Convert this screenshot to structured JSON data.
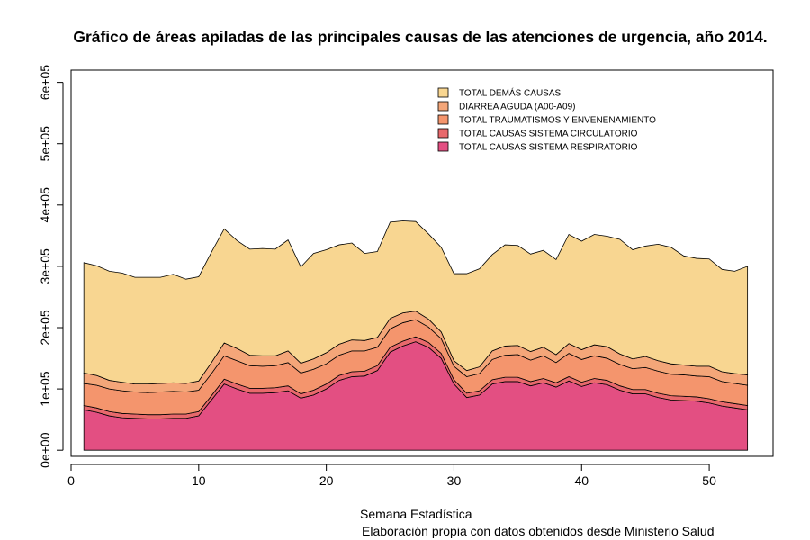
{
  "chart_data": {
    "type": "area",
    "stacked": true,
    "title": "Gráfico de áreas apiladas de las principales causas de las atenciones de urgencia, año 2014.",
    "xlabel": "Semana Estadística",
    "caption": "Elaboración propia con datos obtenidos desde Ministerio Salud",
    "ylabel": "",
    "xlim": [
      0,
      55
    ],
    "ylim": [
      -10000,
      620000
    ],
    "x_ticks": [
      0,
      10,
      20,
      30,
      40,
      50
    ],
    "x_tick_labels": [
      "0",
      "10",
      "20",
      "30",
      "40",
      "50"
    ],
    "y_ticks": [
      0,
      100000,
      200000,
      300000,
      400000,
      500000,
      600000
    ],
    "y_tick_labels": [
      "0e+00",
      "1e+05",
      "2e+05",
      "3e+05",
      "4e+05",
      "5e+05",
      "6e+05"
    ],
    "legend_position": "top-right",
    "x": [
      1,
      2,
      3,
      4,
      5,
      6,
      7,
      8,
      9,
      10,
      11,
      12,
      13,
      14,
      15,
      16,
      17,
      18,
      19,
      20,
      21,
      22,
      23,
      24,
      25,
      26,
      27,
      28,
      29,
      30,
      31,
      32,
      33,
      34,
      35,
      36,
      37,
      38,
      39,
      40,
      41,
      42,
      43,
      44,
      45,
      46,
      47,
      48,
      49,
      50,
      51,
      52,
      53
    ],
    "series": [
      {
        "name": "TOTAL CAUSAS SISTEMA RESPIRATORIO",
        "color": "#E34F82",
        "values": [
          66000,
          62000,
          56000,
          53000,
          52000,
          51000,
          51000,
          52000,
          52000,
          56000,
          82000,
          108000,
          100000,
          93000,
          93000,
          94000,
          97000,
          85000,
          90000,
          100000,
          114000,
          120000,
          121000,
          130000,
          160000,
          170000,
          177000,
          168000,
          150000,
          108000,
          86000,
          90000,
          108000,
          112000,
          112000,
          105000,
          110000,
          103000,
          113000,
          104000,
          110000,
          107000,
          98000,
          92000,
          92000,
          86000,
          82000,
          81000,
          80000,
          77000,
          72000,
          69000,
          66000
        ]
      },
      {
        "name": "TOTAL CAUSAS SISTEMA CIRCULATORIO",
        "color": "#E8696C",
        "values": [
          7000,
          7000,
          7000,
          7000,
          7000,
          7000,
          7000,
          7000,
          7000,
          7000,
          7000,
          8000,
          8000,
          8000,
          8000,
          8000,
          8000,
          7000,
          8000,
          8000,
          8000,
          8000,
          8000,
          8000,
          8000,
          8000,
          8000,
          8000,
          8000,
          7000,
          7000,
          7000,
          7000,
          7000,
          7000,
          7000,
          7000,
          7000,
          7000,
          7000,
          7000,
          7000,
          7000,
          7000,
          7000,
          7000,
          7000,
          7000,
          7000,
          7000,
          7000,
          7000,
          7000
        ]
      },
      {
        "name": "TOTAL TRAUMATISMOS Y ENVENENAMIENTO",
        "color": "#F4956D",
        "values": [
          36000,
          37000,
          37000,
          37000,
          36000,
          36000,
          37000,
          37000,
          36000,
          35000,
          36000,
          38000,
          38000,
          37000,
          36000,
          36000,
          38000,
          34000,
          34000,
          33000,
          33000,
          34000,
          33000,
          30000,
          30000,
          30000,
          28000,
          25000,
          24000,
          22000,
          27000,
          28000,
          33000,
          36000,
          37000,
          35000,
          37000,
          33000,
          38000,
          37000,
          37000,
          36000,
          35000,
          34000,
          36000,
          36000,
          35000,
          35000,
          34000,
          36000,
          33000,
          33000,
          33000
        ]
      },
      {
        "name": "DIARREA AGUDA (A00-A09)",
        "color": "#F4A679",
        "values": [
          17000,
          16000,
          14000,
          14000,
          13000,
          14000,
          14000,
          14000,
          14000,
          15000,
          18000,
          21000,
          20000,
          17000,
          17000,
          16000,
          19000,
          16000,
          17000,
          18000,
          18000,
          18000,
          17000,
          16000,
          17000,
          16000,
          14000,
          13000,
          11000,
          9000,
          10000,
          11000,
          14000,
          15000,
          15000,
          14000,
          14000,
          13000,
          16000,
          16000,
          18000,
          19000,
          17000,
          16000,
          18000,
          17000,
          17000,
          16000,
          16000,
          17000,
          16000,
          16000,
          17000
        ]
      },
      {
        "name": "TOTAL DEMÁS CAUSAS",
        "color": "#F8D691",
        "values": [
          180000,
          179000,
          178000,
          178000,
          174000,
          174000,
          173000,
          177000,
          170000,
          170000,
          180000,
          186000,
          176000,
          173000,
          175000,
          174000,
          181000,
          157000,
          172000,
          168000,
          162000,
          158000,
          142000,
          140000,
          157000,
          150000,
          146000,
          139000,
          138000,
          142000,
          158000,
          160000,
          157000,
          165000,
          163000,
          159000,
          158000,
          155000,
          178000,
          177000,
          180000,
          180000,
          187000,
          178000,
          180000,
          190000,
          190000,
          178000,
          176000,
          175000,
          167000,
          167000,
          177000
        ]
      }
    ]
  },
  "axes": {
    "line_color": "#000000"
  }
}
